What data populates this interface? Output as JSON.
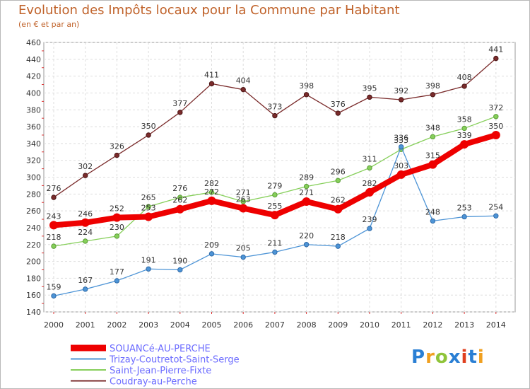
{
  "title": "Evolution des Impôts locaux pour la Commune par Habitant",
  "subtitle": "(en € et par an)",
  "logo": {
    "text": "Proxiti",
    "colors": [
      "#2a7fd4",
      "#f0a020",
      "#8fc43a",
      "#2a7fd4",
      "#e0401f",
      "#2a7fd4",
      "#f0a020"
    ]
  },
  "chart_data": {
    "type": "line",
    "title": "Evolution des Impôts locaux pour la Commune par Habitant",
    "subtitle": "(en € et par an)",
    "xlabel": "",
    "ylabel": "",
    "ylim": [
      140,
      460
    ],
    "yticks": [
      140,
      160,
      180,
      200,
      220,
      240,
      260,
      280,
      300,
      320,
      340,
      360,
      380,
      400,
      420,
      440,
      460
    ],
    "grid": true,
    "legend_position": "bottom-left",
    "x": [
      "2000",
      "2001",
      "2002",
      "2003",
      "2004",
      "2005",
      "2006",
      "2007",
      "2008",
      "2009",
      "2010",
      "2011",
      "2012",
      "2013",
      "2014"
    ],
    "series": [
      {
        "name": "SOUANCé-AU-PERCHE",
        "color": "#ee0000",
        "values": [
          243,
          246,
          252,
          253,
          262,
          272,
          263,
          255,
          271,
          262,
          282,
          303,
          315,
          339,
          350
        ]
      },
      {
        "name": "Trizay-Coutretot-Saint-Serge",
        "color": "#4d94d6",
        "values": [
          159,
          167,
          177,
          191,
          190,
          209,
          205,
          211,
          220,
          218,
          239,
          336,
          248,
          253,
          254
        ]
      },
      {
        "name": "Saint-Jean-Pierre-Fixte",
        "color": "#86cf5a",
        "values": [
          218,
          224,
          230,
          265,
          276,
          282,
          271,
          279,
          289,
          296,
          311,
          333,
          348,
          358,
          372
        ]
      },
      {
        "name": "Coudray-au-Perche",
        "color": "#7a2b2b",
        "values": [
          276,
          302,
          326,
          350,
          377,
          411,
          404,
          373,
          398,
          376,
          395,
          392,
          398,
          408,
          441
        ]
      }
    ]
  }
}
